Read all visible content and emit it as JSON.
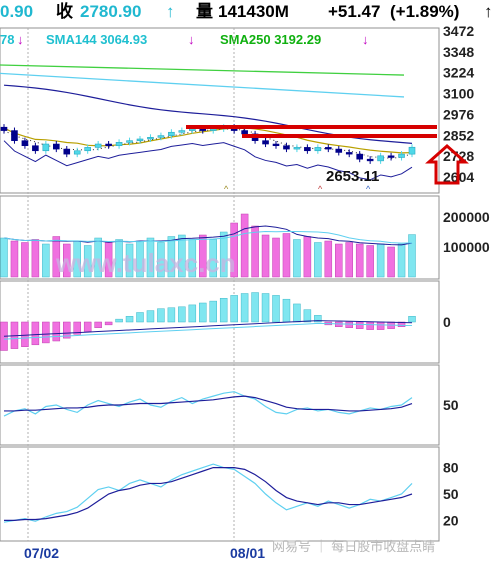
{
  "header": {
    "row1": {
      "open_value": "0.90",
      "close_label": "收",
      "close_value": "2780.90",
      "close_arrow": "↑",
      "volume_label": "量",
      "volume_value": "141430M",
      "change": "+51.47",
      "change_pct": "(+1.89%)",
      "change_arrow": "↑"
    },
    "row2": {
      "sma_short_tail": "78",
      "sma144": "SMA144 3064.93",
      "sma250": "SMA250 3192.29",
      "arrow": "↓"
    }
  },
  "colors": {
    "up_candle": "#4fd8e8",
    "down_candle": "#00008b",
    "volume_up": "#7fe6f0",
    "volume_down": "#f070e0",
    "sma144_line": "#5fd0f0",
    "sma250_line": "#40d040",
    "ma_dark": "#1e1e9a",
    "ma_olive": "#b8a000",
    "arrow_red": "#d60000",
    "label_cyan": "#20c0d0",
    "label_green": "#10b010",
    "label_magenta": "#c000c0",
    "watermark": "#c8b4e0"
  },
  "annotations": {
    "low_label": "2653.11",
    "watermark": "www.tulaxc.cn",
    "footer": "网易号 ｜ 每日股市收盘点睛"
  },
  "chart_data": [
    {
      "type": "candlestick",
      "panel": "price",
      "yticks": [
        "3472",
        "3348",
        "3224",
        "3100",
        "2976",
        "2852",
        "2728",
        "2604"
      ],
      "ylim": [
        2604,
        3472
      ],
      "low_marker": 2653.11,
      "resistance_levels": [
        2880,
        2852
      ],
      "close_last": 2780.9,
      "sma144_last": 3064.93,
      "sma250_last": 3192.29,
      "series_close": [
        2880,
        2820,
        2790,
        2760,
        2800,
        2770,
        2740,
        2760,
        2780,
        2800,
        2790,
        2810,
        2820,
        2830,
        2840,
        2850,
        2870,
        2880,
        2890,
        2880,
        2890,
        2900,
        2880,
        2860,
        2820,
        2800,
        2790,
        2770,
        2780,
        2760,
        2780,
        2770,
        2750,
        2740,
        2710,
        2700,
        2730,
        2720,
        2740,
        2781
      ]
    },
    {
      "type": "bar",
      "panel": "volume",
      "yticks": [
        "200000",
        "100000"
      ],
      "ylim": [
        0,
        260000
      ],
      "values": [
        130000,
        120000,
        115000,
        125000,
        110000,
        135000,
        110000,
        120000,
        105000,
        130000,
        115000,
        125000,
        110000,
        120000,
        130000,
        115000,
        135000,
        140000,
        125000,
        140000,
        125000,
        150000,
        180000,
        210000,
        170000,
        140000,
        130000,
        145000,
        125000,
        135000,
        115000,
        120000,
        110000,
        115000,
        110000,
        105000,
        110000,
        100000,
        110000,
        141430
      ]
    },
    {
      "type": "bar",
      "panel": "macd",
      "yticks": [
        "0"
      ],
      "ylim": [
        -40,
        40
      ],
      "values": [
        -30,
        -28,
        -26,
        -24,
        -22,
        -20,
        -17,
        -13,
        -10,
        -6,
        -3,
        3,
        6,
        10,
        12,
        14,
        15,
        16,
        18,
        20,
        22,
        25,
        28,
        30,
        31,
        30,
        28,
        24,
        19,
        13,
        7,
        -3,
        -5,
        -6,
        -7,
        -8,
        -8,
        -7,
        -5,
        6
      ]
    },
    {
      "type": "line",
      "panel": "oscillator1",
      "yticks": [
        "50"
      ],
      "ylim": [
        0,
        100
      ],
      "series": [
        {
          "values": [
            35,
            42,
            45,
            38,
            48,
            50,
            44,
            40,
            50,
            56,
            52,
            48,
            54,
            58,
            50,
            47,
            55,
            60,
            52,
            58,
            62,
            66,
            68,
            62,
            58,
            48,
            40,
            38,
            44,
            46,
            42,
            44,
            40,
            38,
            42,
            46,
            44,
            48,
            50,
            60
          ]
        },
        {
          "values": [
            42,
            42,
            43,
            43,
            44,
            45,
            46,
            46,
            47,
            49,
            50,
            50,
            51,
            52,
            52,
            52,
            53,
            54,
            55,
            56,
            57,
            59,
            61,
            62,
            60,
            56,
            52,
            47,
            45,
            44,
            44,
            44,
            43,
            42,
            42,
            43,
            44,
            45,
            47,
            52
          ]
        }
      ]
    },
    {
      "type": "line",
      "panel": "oscillator2",
      "yticks": [
        "80",
        "50",
        "20"
      ],
      "ylim": [
        0,
        100
      ],
      "series": [
        {
          "values": [
            18,
            20,
            22,
            19,
            24,
            28,
            30,
            35,
            45,
            55,
            58,
            54,
            62,
            66,
            62,
            58,
            66,
            72,
            76,
            80,
            84,
            80,
            78,
            70,
            62,
            50,
            40,
            32,
            36,
            40,
            36,
            42,
            38,
            34,
            38,
            44,
            42,
            46,
            50,
            62
          ]
        },
        {
          "values": [
            20,
            20,
            21,
            21,
            22,
            24,
            26,
            29,
            34,
            42,
            50,
            54,
            56,
            60,
            62,
            62,
            64,
            68,
            72,
            76,
            80,
            80,
            80,
            78,
            72,
            64,
            54,
            46,
            42,
            40,
            38,
            40,
            40,
            38,
            38,
            40,
            42,
            44,
            46,
            50
          ]
        }
      ]
    }
  ],
  "xaxis": {
    "ticks": [
      "07/02",
      "08/01"
    ]
  }
}
